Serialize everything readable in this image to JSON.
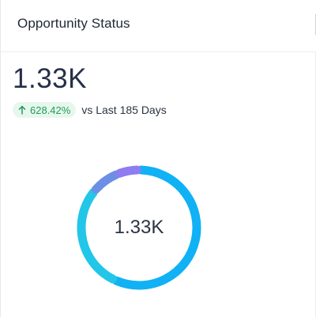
{
  "card": {
    "title": "Opportunity Status",
    "kpi_value": "1.33K",
    "trend": {
      "direction": "up",
      "icon": "arrow-up-icon",
      "percent": "628.42%",
      "compare_text": "vs Last 185 Days",
      "badge_bg": "#e7f7ee",
      "badge_color": "#1f9d57"
    }
  },
  "chart_data": {
    "type": "pie",
    "donut": true,
    "center_label": "1.33K",
    "slices": [
      {
        "value": 57,
        "color": "#10b1f5"
      },
      {
        "value": 29,
        "color": "#22c6e8"
      },
      {
        "value": 8,
        "color": "#6c8fe6"
      },
      {
        "value": 6,
        "color": "#8d7df0"
      }
    ]
  }
}
